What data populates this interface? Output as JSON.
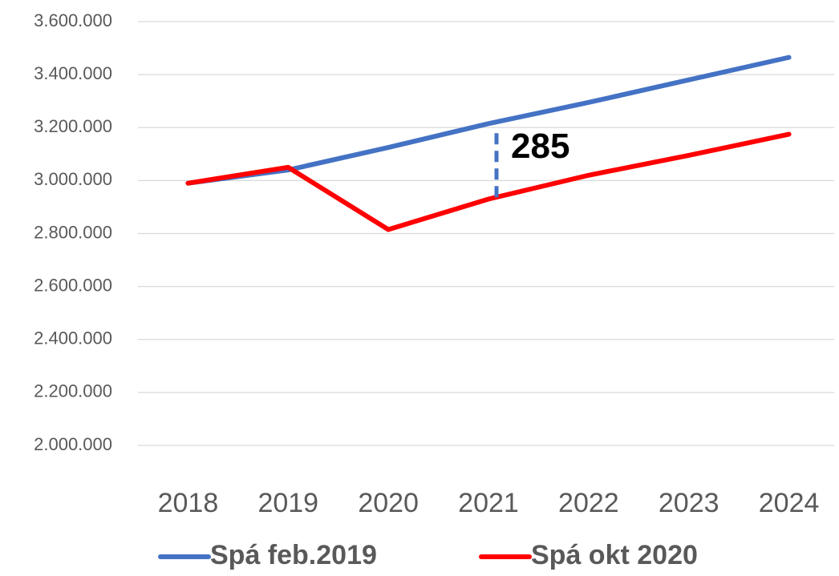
{
  "chart_data": {
    "type": "line",
    "categories": [
      "2018",
      "2019",
      "2020",
      "2021",
      "2022",
      "2023",
      "2024"
    ],
    "series": [
      {
        "name": "Spá feb.2019",
        "color": "#4472c4",
        "values": [
          2990000,
          3040000,
          3125000,
          3215000,
          3295000,
          3380000,
          3465000
        ]
      },
      {
        "name": "Spá okt 2020",
        "color": "#ff0000",
        "values": [
          2990000,
          3050000,
          2815000,
          2930000,
          3020000,
          3095000,
          3175000
        ]
      }
    ],
    "ylim": [
      2000000,
      3600000
    ],
    "yticks": [
      {
        "value": 2000000,
        "label": "2.000.000"
      },
      {
        "value": 2200000,
        "label": "2.200.000"
      },
      {
        "value": 2400000,
        "label": "2.400.000"
      },
      {
        "value": 2600000,
        "label": "2.600.000"
      },
      {
        "value": 2800000,
        "label": "2.800.000"
      },
      {
        "value": 3000000,
        "label": "3.000.000"
      },
      {
        "value": 3200000,
        "label": "3.200.000"
      },
      {
        "value": 3400000,
        "label": "3.400.000"
      },
      {
        "value": 3600000,
        "label": "3.600.000"
      }
    ],
    "grid": true,
    "legend": "bottom",
    "annotations": [
      {
        "text": "285",
        "category": 3
      }
    ]
  }
}
